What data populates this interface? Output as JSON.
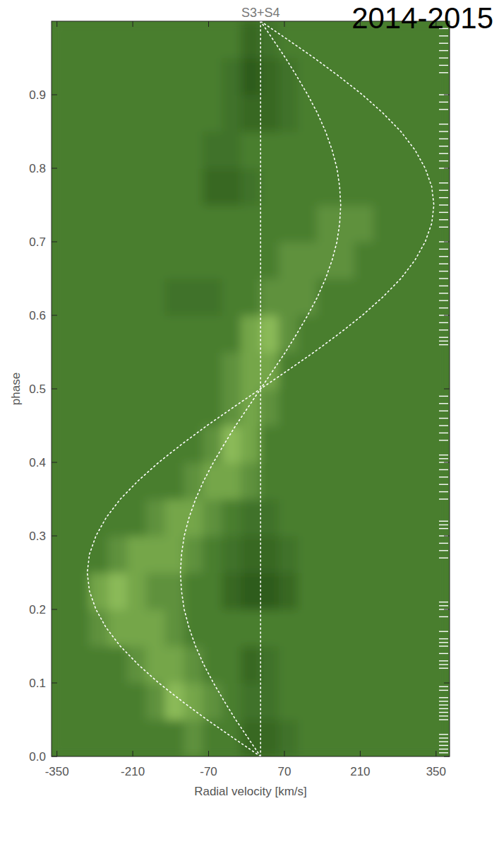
{
  "chart_data": {
    "type": "heatmap",
    "title": "S3+S4",
    "subtitle": "2014-2015",
    "x_label": "Radial velocity [km/s]",
    "y_label": "phase",
    "xlim": [
      -360,
      375
    ],
    "ylim": [
      0,
      1
    ],
    "xticks": [
      -350,
      -210,
      -70,
      70,
      210,
      350
    ],
    "yticks": [
      {
        "value": 0,
        "label": "0.0"
      },
      0.1,
      0.2,
      0.3,
      0.4,
      0.5,
      0.6,
      0.7,
      0.8,
      0.9
    ],
    "zlim": [
      0,
      9
    ],
    "x_edges": [
      -360,
      -325,
      -290,
      -255,
      -220,
      -185,
      -150,
      -115,
      -80,
      -45,
      -10,
      25,
      60,
      95,
      130,
      165,
      200,
      235,
      270,
      305,
      340,
      375
    ],
    "y_edges": [
      0,
      0.05,
      0.1,
      0.15,
      0.2,
      0.25,
      0.3,
      0.35,
      0.4,
      0.45,
      0.5,
      0.55,
      0.6,
      0.65,
      0.7,
      0.75,
      0.8,
      0.85,
      0.9,
      0.95,
      1
    ],
    "cells": [
      [
        5,
        5,
        5,
        5,
        5,
        5,
        5,
        6,
        5,
        5,
        3,
        3,
        4,
        5,
        5,
        5,
        5,
        5,
        5,
        5,
        5
      ],
      [
        5,
        5,
        5,
        5,
        5,
        6,
        8,
        7,
        6,
        5,
        4,
        4,
        5,
        5,
        5,
        5,
        5,
        5,
        5,
        5,
        5
      ],
      [
        5,
        5,
        5,
        5,
        6,
        7,
        7,
        6,
        5,
        5,
        3,
        4,
        5,
        5,
        5,
        5,
        5,
        5,
        5,
        5,
        5
      ],
      [
        5,
        5,
        6,
        7,
        7,
        7,
        6,
        5,
        5,
        5,
        5,
        5,
        5,
        5,
        5,
        5,
        5,
        5,
        5,
        5,
        5
      ],
      [
        5,
        5,
        7,
        8,
        7,
        6,
        6,
        5,
        5,
        3,
        2,
        2,
        3,
        5,
        5,
        5,
        5,
        5,
        5,
        5,
        5
      ],
      [
        5,
        5,
        5,
        6,
        7,
        7,
        7,
        6,
        5,
        4,
        3,
        3,
        4,
        5,
        5,
        5,
        5,
        5,
        5,
        5,
        5
      ],
      [
        5,
        5,
        5,
        5,
        5,
        6,
        7,
        7,
        6,
        5,
        4,
        4,
        5,
        5,
        5,
        5,
        5,
        5,
        5,
        5,
        5
      ],
      [
        5,
        5,
        5,
        5,
        5,
        5,
        5,
        6,
        7,
        7,
        6,
        5,
        5,
        5,
        5,
        5,
        5,
        5,
        5,
        5,
        5
      ],
      [
        5,
        5,
        5,
        5,
        5,
        5,
        5,
        5,
        6,
        8,
        7,
        5,
        5,
        5,
        5,
        5,
        5,
        5,
        5,
        5,
        5
      ],
      [
        5,
        5,
        5,
        5,
        5,
        5,
        5,
        5,
        5,
        6,
        7,
        6,
        5,
        5,
        5,
        5,
        5,
        5,
        5,
        5,
        5
      ],
      [
        5,
        5,
        5,
        5,
        5,
        5,
        5,
        5,
        5,
        6,
        7,
        7,
        5,
        5,
        5,
        5,
        5,
        5,
        5,
        5,
        5
      ],
      [
        5,
        5,
        5,
        5,
        5,
        5,
        5,
        5,
        5,
        5,
        7,
        8,
        6,
        5,
        5,
        5,
        5,
        5,
        5,
        5,
        5
      ],
      [
        5,
        5,
        5,
        5,
        5,
        5,
        4,
        4,
        4,
        5,
        5,
        6,
        6,
        6,
        5,
        5,
        5,
        5,
        5,
        5,
        5
      ],
      [
        5,
        5,
        5,
        5,
        5,
        5,
        5,
        5,
        5,
        5,
        5,
        5,
        6,
        6,
        6,
        6,
        5,
        5,
        5,
        5,
        5
      ],
      [
        5,
        5,
        5,
        5,
        5,
        5,
        5,
        5,
        5,
        5,
        5,
        5,
        5,
        5,
        6,
        6,
        6,
        5,
        5,
        5,
        5
      ],
      [
        5,
        5,
        5,
        5,
        5,
        5,
        5,
        5,
        3,
        3,
        4,
        5,
        5,
        5,
        5,
        5,
        5,
        5,
        5,
        5,
        5
      ],
      [
        5,
        5,
        5,
        5,
        5,
        5,
        5,
        5,
        4,
        4,
        5,
        5,
        5,
        5,
        5,
        5,
        5,
        5,
        5,
        5,
        5
      ],
      [
        5,
        5,
        5,
        5,
        5,
        5,
        5,
        5,
        5,
        4,
        3,
        3,
        4,
        5,
        5,
        5,
        5,
        5,
        5,
        5,
        5
      ],
      [
        5,
        5,
        5,
        5,
        5,
        5,
        5,
        5,
        5,
        4,
        2,
        3,
        4,
        5,
        5,
        5,
        5,
        5,
        5,
        5,
        5
      ],
      [
        5,
        5,
        5,
        5,
        5,
        5,
        5,
        5,
        5,
        5,
        3,
        4,
        5,
        5,
        5,
        5,
        5,
        5,
        5,
        5,
        5
      ]
    ],
    "series": [
      {
        "type": "line",
        "color": "#ffffff",
        "line_style": "dotted",
        "x": [
          26,
          -24,
          -73,
          -119,
          -162,
          -200,
          -233,
          -259,
          -278,
          -290,
          -294,
          -290,
          -278,
          -259,
          -233,
          -200,
          -162,
          -119,
          -73,
          -24,
          26,
          76,
          125,
          171,
          214,
          252,
          285,
          311,
          330,
          342,
          346,
          342,
          330,
          311,
          285,
          252,
          214,
          171,
          125,
          76,
          26
        ],
        "y": [
          0,
          0.025,
          0.05,
          0.075,
          0.1,
          0.125,
          0.15,
          0.175,
          0.2,
          0.225,
          0.25,
          0.275,
          0.3,
          0.325,
          0.35,
          0.375,
          0.4,
          0.425,
          0.45,
          0.475,
          0.5,
          0.525,
          0.55,
          0.575,
          0.6,
          0.625,
          0.65,
          0.675,
          0.7,
          0.725,
          0.75,
          0.775,
          0.8,
          0.825,
          0.85,
          0.875,
          0.9,
          0.925,
          0.95,
          0.975,
          1
        ]
      },
      {
        "type": "line",
        "color": "#ffffff",
        "line_style": "dotted",
        "x": [
          26,
          3,
          -20,
          -41,
          -61,
          -79,
          -94,
          -106,
          -115,
          -120,
          -122,
          -120,
          -115,
          -106,
          -94,
          -79,
          -61,
          -41,
          -20,
          3,
          26,
          49,
          72,
          93,
          113,
          131,
          146,
          158,
          167,
          172,
          174,
          172,
          167,
          158,
          146,
          131,
          113,
          93,
          72,
          49,
          26
        ],
        "y": [
          0,
          0.025,
          0.05,
          0.075,
          0.1,
          0.125,
          0.15,
          0.175,
          0.2,
          0.225,
          0.25,
          0.275,
          0.3,
          0.325,
          0.35,
          0.375,
          0.4,
          0.425,
          0.45,
          0.475,
          0.5,
          0.525,
          0.55,
          0.575,
          0.6,
          0.625,
          0.65,
          0.675,
          0.7,
          0.725,
          0.75,
          0.775,
          0.8,
          0.825,
          0.85,
          0.875,
          0.9,
          0.925,
          0.95,
          0.975,
          1
        ]
      },
      {
        "type": "line",
        "color": "#ffffff",
        "line_style": "dotted",
        "x": [
          26,
          26
        ],
        "y": [
          0,
          1
        ]
      }
    ],
    "observations": [
      0.005,
      0.01,
      0.015,
      0.02,
      0.025,
      0.03,
      0.05,
      0.055,
      0.06,
      0.065,
      0.07,
      0.075,
      0.08,
      0.09,
      0.095,
      0.12,
      0.125,
      0.13,
      0.14,
      0.15,
      0.155,
      0.16,
      0.17,
      0.19,
      0.2,
      0.205,
      0.21,
      0.27,
      0.28,
      0.29,
      0.3,
      0.31,
      0.315,
      0.32,
      0.35,
      0.36,
      0.37,
      0.38,
      0.39,
      0.4,
      0.405,
      0.41,
      0.43,
      0.44,
      0.45,
      0.46,
      0.47,
      0.48,
      0.49,
      0.56,
      0.565,
      0.57,
      0.58,
      0.59,
      0.6,
      0.61,
      0.62,
      0.63,
      0.64,
      0.65,
      0.66,
      0.67,
      0.68,
      0.69,
      0.7,
      0.72,
      0.73,
      0.74,
      0.75,
      0.76,
      0.77,
      0.78,
      0.8,
      0.81,
      0.82,
      0.83,
      0.84,
      0.85,
      0.86,
      0.88,
      0.89,
      0.9,
      0.93,
      0.94,
      0.95,
      0.96,
      0.97,
      0.98,
      0.99
    ]
  }
}
